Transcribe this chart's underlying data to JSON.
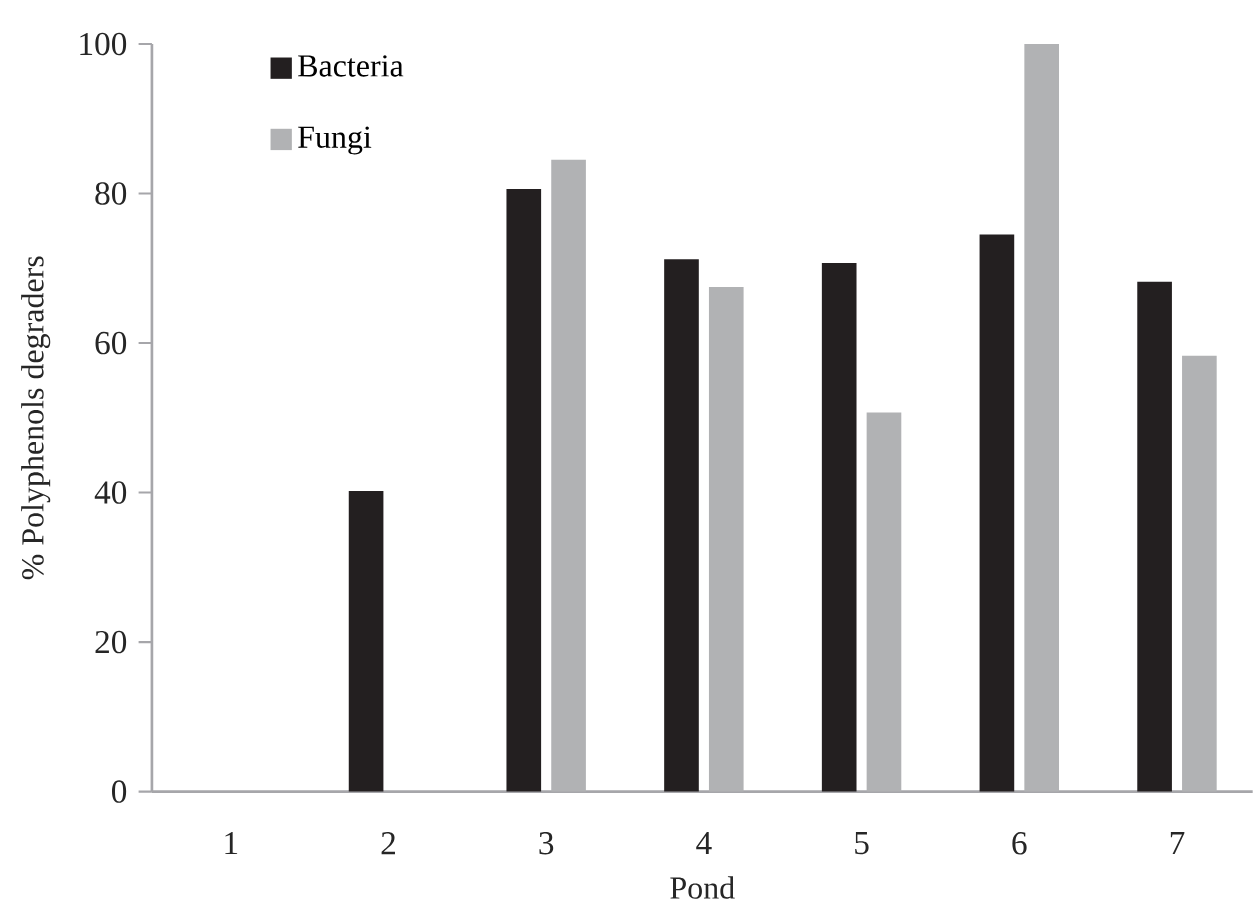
{
  "chart_data": {
    "type": "bar",
    "xlabel": "Pond",
    "ylabel": "% Polyphenols degraders",
    "categories": [
      "1",
      "2",
      "3",
      "4",
      "5",
      "6",
      "7"
    ],
    "series": [
      {
        "name": "Bacteria",
        "color": "#231f20",
        "values": [
          0,
          40.2,
          80.6,
          71.2,
          70.7,
          74.5,
          68.2
        ]
      },
      {
        "name": "Fungi",
        "color": "#b1b2b4",
        "values": [
          0,
          0,
          84.5,
          67.5,
          50.7,
          100,
          58.3
        ]
      }
    ],
    "ylim": [
      0,
      100
    ],
    "yticks": [
      0,
      20,
      40,
      60,
      80,
      100
    ],
    "grid": false,
    "legend": "top left"
  }
}
